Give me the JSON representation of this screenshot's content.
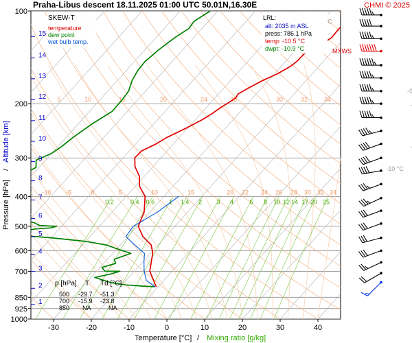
{
  "header": {
    "title": "Praha-Libus   descent   18.11.2025 01:00 UTC   50.01N,16.30E",
    "credit": "CHMI © 2025"
  },
  "legend": {
    "chart_name": "SKEW-T",
    "items": [
      {
        "label": "temperature",
        "color": "#e00000"
      },
      {
        "label": "dew point",
        "color": "#008000"
      },
      {
        "label": "wet bulb temp.",
        "color": "#0055dd"
      }
    ]
  },
  "lrl": {
    "title": "LRL:",
    "lines": [
      {
        "text": "alt: 2035 m ASL",
        "color": "#0000cc"
      },
      {
        "text": "press: 786.1 hPa",
        "color": "#000000"
      },
      {
        "text": "temp: -10.5 °C",
        "color": "#e00000"
      },
      {
        "text": "dwpt: -10.9 °C",
        "color": "#008000"
      }
    ]
  },
  "mxws_label": "MXWS",
  "table": {
    "headers": [
      "p [hPa]",
      "T",
      "Td [°C]"
    ],
    "rows": [
      [
        "500",
        "-29.7",
        "-51.3"
      ],
      [
        "700",
        "-15.9",
        "-23.8"
      ],
      [
        "850",
        "NA",
        "NA"
      ]
    ]
  },
  "chart_data": {
    "type": "line",
    "chart_name": "SKEW-T",
    "xlabel": "Temperature [°C]",
    "xlabel_sep": "/",
    "xlabel2": "Mixing ratio [g/kg]",
    "ylabel": "Pressure [hPa]",
    "ylabel_sep": "/",
    "ylabel2": "Altitude [km]",
    "x_ticks": [
      -30,
      -20,
      -10,
      0,
      10,
      20,
      30,
      40
    ],
    "xlim": [
      -36,
      46
    ],
    "y_scale": "log",
    "ylim": [
      1000,
      100
    ],
    "pressure_ticks": [
      100,
      200,
      300,
      400,
      500,
      600,
      700,
      850,
      925,
      1000
    ],
    "altitude_ticks": [
      {
        "km": 1,
        "p": 898
      },
      {
        "km": 2,
        "p": 795
      },
      {
        "km": 3,
        "p": 701
      },
      {
        "km": 4,
        "p": 616
      },
      {
        "km": 5,
        "p": 540
      },
      {
        "km": 6,
        "p": 472
      },
      {
        "km": 7,
        "p": 411
      },
      {
        "km": 8,
        "p": 356
      },
      {
        "km": 9,
        "p": 308
      },
      {
        "km": 10,
        "p": 265
      },
      {
        "km": 11,
        "p": 227
      },
      {
        "km": 12,
        "p": 194
      },
      {
        "km": 13,
        "p": 166
      },
      {
        "km": 14,
        "p": 142
      },
      {
        "km": 15,
        "p": 121
      }
    ],
    "dry_adiabat_labels": [
      {
        "text": "-80 °C",
        "x": -29,
        "p": 110
      },
      {
        "text": "-70",
        "x": 4,
        "p": 140
      },
      {
        "text": "-60",
        "x": 7,
        "p": 155
      },
      {
        "text": "-50",
        "x": 11,
        "p": 185
      },
      {
        "text": "-40",
        "x": 15,
        "p": 205
      },
      {
        "text": "-30",
        "x": 21,
        "p": 240
      },
      {
        "text": "-20",
        "x": 25,
        "p": 280
      },
      {
        "text": "-10 °C",
        "x": 25,
        "p": 330
      }
    ],
    "mixing_ratio_labels": [
      "0.2",
      "0.4",
      "0.6",
      "1",
      "1.4",
      "2",
      "3",
      "4",
      "6",
      "8",
      "10",
      "12",
      "14",
      "17",
      "20",
      "25"
    ],
    "mixing_ratio_values": [
      0.2,
      0.4,
      0.6,
      1,
      1.4,
      2,
      3,
      4,
      6,
      8,
      10,
      12,
      14,
      17,
      20,
      25
    ],
    "mixing_ratio_label_p": 413,
    "orange_labels_200": [
      "5",
      "10",
      "15",
      "20",
      "24",
      "28",
      "30",
      "32",
      "34"
    ],
    "orange_labels_400": [
      "-10",
      "-5",
      "0",
      "5",
      "10",
      "15",
      "20",
      "22",
      "24",
      "26",
      "28",
      "30",
      "32",
      "34"
    ],
    "series": [
      {
        "name": "temperature",
        "color": "#e00000",
        "points": [
          [
            -20.0,
            100
          ],
          [
            -22.5,
            107
          ],
          [
            -23.7,
            114
          ],
          [
            -23.5,
            122
          ],
          [
            -24.8,
            130
          ],
          [
            -26.9,
            138
          ],
          [
            -27.0,
            145
          ],
          [
            -27.5,
            151
          ],
          [
            -29.2,
            160
          ],
          [
            -31.5,
            168
          ],
          [
            -33.5,
            178
          ],
          [
            -34.8,
            186
          ],
          [
            -34.5,
            192
          ],
          [
            -35.2,
            198
          ],
          [
            -36.1,
            205
          ],
          [
            -37.0,
            215
          ],
          [
            -38.1,
            225
          ],
          [
            -40.4,
            240
          ],
          [
            -43.4,
            258
          ],
          [
            -44.6,
            270
          ],
          [
            -46.8,
            285
          ],
          [
            -46.9,
            300
          ],
          [
            -44.8,
            320
          ],
          [
            -41.2,
            345
          ],
          [
            -39.0,
            370
          ],
          [
            -35.0,
            400
          ],
          [
            -31.5,
            450
          ],
          [
            -29.7,
            500
          ],
          [
            -26.0,
            540
          ],
          [
            -21.8,
            575
          ],
          [
            -19.5,
            610
          ],
          [
            -15.9,
            700
          ],
          [
            -10.5,
            786
          ]
        ]
      },
      {
        "name": "dew point",
        "color": "#008000",
        "points": [
          [
            -62.0,
            100
          ],
          [
            -63.8,
            108
          ],
          [
            -63.5,
            114
          ],
          [
            -65.0,
            122
          ],
          [
            -66.4,
            134
          ],
          [
            -67.2,
            146
          ],
          [
            -67.0,
            156
          ],
          [
            -66.1,
            168
          ],
          [
            -64.5,
            182
          ],
          [
            -64.1,
            194
          ],
          [
            -64.0,
            212
          ],
          [
            -66.3,
            232
          ],
          [
            -68.2,
            258
          ],
          [
            -69.0,
            275
          ],
          [
            -70.0,
            290
          ],
          [
            -72.5,
            305
          ],
          [
            -70.8,
            322
          ],
          [
            -72.9,
            342
          ],
          [
            -69.5,
            362
          ],
          [
            -73.0,
            380
          ],
          [
            -69.7,
            400
          ],
          [
            -70.4,
            430
          ],
          [
            -67.5,
            460
          ],
          [
            -64.0,
            476
          ],
          [
            -58.3,
            486
          ],
          [
            -56.0,
            497
          ],
          [
            -51.3,
            500
          ],
          [
            -52.5,
            506
          ],
          [
            -56.2,
            510
          ],
          [
            -58.5,
            516
          ],
          [
            -63.8,
            530
          ],
          [
            -50.0,
            545
          ],
          [
            -40.0,
            560
          ],
          [
            -33.7,
            575
          ],
          [
            -29.2,
            595
          ],
          [
            -25.2,
            612
          ],
          [
            -28.2,
            640
          ],
          [
            -26.8,
            660
          ],
          [
            -29.5,
            680
          ],
          [
            -27.8,
            700
          ],
          [
            -23.8,
            700
          ],
          [
            -25.7,
            715
          ],
          [
            -29.0,
            733
          ],
          [
            -23.5,
            762
          ],
          [
            -19.0,
            775
          ],
          [
            -14.5,
            782
          ],
          [
            -10.9,
            786
          ]
        ]
      },
      {
        "name": "wet bulb temp.",
        "color": "#0055dd",
        "points": [
          [
            -26.1,
            400
          ],
          [
            -28.0,
            450
          ],
          [
            -31.0,
            500
          ],
          [
            -30.5,
            540
          ],
          [
            -26.2,
            575
          ],
          [
            -21.6,
            612
          ],
          [
            -19.8,
            650
          ],
          [
            -17.4,
            700
          ],
          [
            -14.6,
            750
          ],
          [
            -10.8,
            786
          ]
        ]
      }
    ],
    "wind_barbs": [
      {
        "p": 103,
        "dir_deg": 270,
        "speed_kt": 55,
        "color": "#000000"
      },
      {
        "p": 112,
        "dir_deg": 270,
        "speed_kt": 50,
        "color": "#000000"
      },
      {
        "p": 123,
        "dir_deg": 270,
        "speed_kt": 55,
        "color": "#000000"
      },
      {
        "p": 135,
        "dir_deg": 270,
        "speed_kt": 70,
        "color": "#e00000"
      },
      {
        "p": 150,
        "dir_deg": 270,
        "speed_kt": 65,
        "color": "#000000"
      },
      {
        "p": 165,
        "dir_deg": 270,
        "speed_kt": 55,
        "color": "#000000"
      },
      {
        "p": 182,
        "dir_deg": 270,
        "speed_kt": 55,
        "color": "#000000"
      },
      {
        "p": 200,
        "dir_deg": 270,
        "speed_kt": 55,
        "color": "#000000"
      },
      {
        "p": 222,
        "dir_deg": 270,
        "speed_kt": 55,
        "color": "#000000"
      },
      {
        "p": 245,
        "dir_deg": 255,
        "speed_kt": 45,
        "color": "#000000"
      },
      {
        "p": 270,
        "dir_deg": 250,
        "speed_kt": 40,
        "color": "#000000"
      },
      {
        "p": 300,
        "dir_deg": 250,
        "speed_kt": 40,
        "color": "#000000"
      },
      {
        "p": 330,
        "dir_deg": 260,
        "speed_kt": 40,
        "color": "#000000"
      },
      {
        "p": 365,
        "dir_deg": 250,
        "speed_kt": 35,
        "color": "#000000"
      },
      {
        "p": 405,
        "dir_deg": 245,
        "speed_kt": 35,
        "color": "#000000"
      },
      {
        "p": 445,
        "dir_deg": 250,
        "speed_kt": 30,
        "color": "#000000"
      },
      {
        "p": 490,
        "dir_deg": 250,
        "speed_kt": 30,
        "color": "#000000"
      },
      {
        "p": 545,
        "dir_deg": 255,
        "speed_kt": 30,
        "color": "#000000"
      },
      {
        "p": 600,
        "dir_deg": 250,
        "speed_kt": 30,
        "color": "#000000"
      },
      {
        "p": 655,
        "dir_deg": 245,
        "speed_kt": 25,
        "color": "#000000"
      },
      {
        "p": 710,
        "dir_deg": 240,
        "speed_kt": 20,
        "color": "#000000"
      },
      {
        "p": 760,
        "dir_deg": 225,
        "speed_kt": 15,
        "color": "#0033ee"
      }
    ],
    "mxws_p": 135,
    "grid": true
  }
}
